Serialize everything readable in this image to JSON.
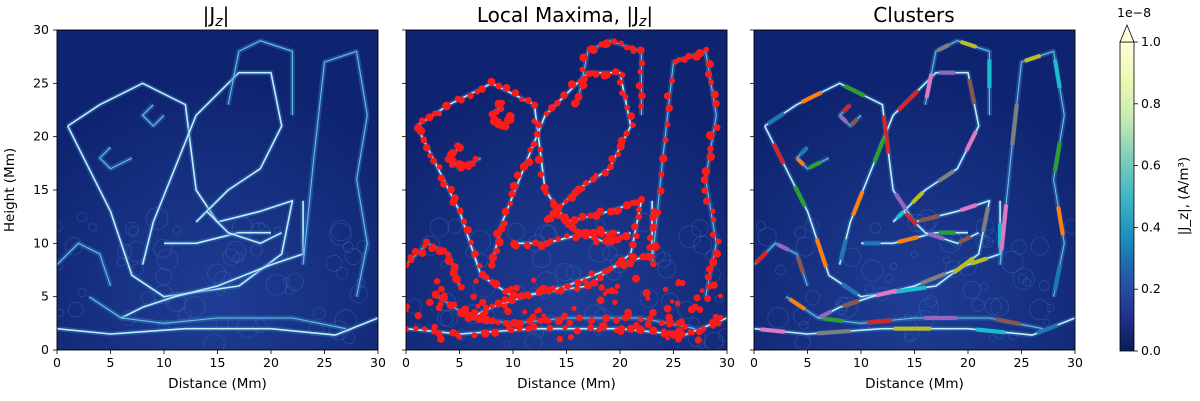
{
  "chart_data": [
    {
      "type": "heatmap",
      "title": "|J_z|",
      "xlabel": "Distance (Mm)",
      "ylabel": "Height (Mm)",
      "xlim": [
        0,
        30
      ],
      "ylim": [
        0,
        30
      ],
      "xticks": [
        "0",
        "5",
        "10",
        "15",
        "20",
        "25",
        "30"
      ],
      "yticks": [
        "0",
        "5",
        "10",
        "15",
        "20",
        "25",
        "30"
      ],
      "overlay": "none"
    },
    {
      "type": "heatmap",
      "title": "Local Maxima, |J_z|",
      "xlabel": "Distance (Mm)",
      "xlim": [
        0,
        30
      ],
      "ylim": [
        0,
        30
      ],
      "xticks": [
        "0",
        "5",
        "10",
        "15",
        "20",
        "25",
        "30"
      ],
      "overlay": "red local-maxima points"
    },
    {
      "type": "heatmap",
      "title": "Clusters",
      "xlabel": "Distance (Mm)",
      "xlim": [
        0,
        30
      ],
      "ylim": [
        0,
        30
      ],
      "xticks": [
        "0",
        "5",
        "10",
        "15",
        "20",
        "25",
        "30"
      ],
      "overlay": "multicolored clusters"
    }
  ],
  "colorbar": {
    "label": "|J_z|, (A/m³)",
    "offset_text": "1e−8",
    "ticks": [
      "0.0",
      "0.2",
      "0.4",
      "0.6",
      "0.8",
      "1.0"
    ],
    "range": [
      0.0,
      1.0
    ],
    "extend": "max",
    "colormap": "YlGnBu_r",
    "colors": [
      "#081d58",
      "#253494",
      "#225ea8",
      "#1d91c0",
      "#41b6c4",
      "#7fcdbb",
      "#c7e9b4",
      "#edf8b1",
      "#ffffd9"
    ]
  }
}
